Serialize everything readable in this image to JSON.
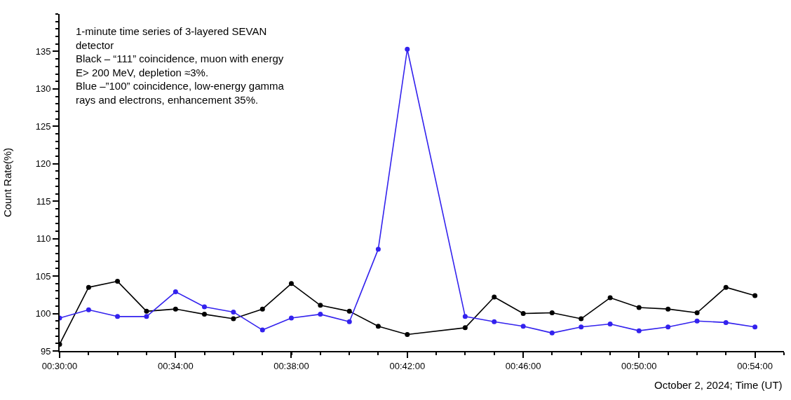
{
  "chart_data": {
    "type": "line",
    "x": [
      0.5,
      0.5167,
      0.5333,
      0.55,
      0.5667,
      0.5833,
      0.6,
      0.6167,
      0.6333,
      0.65,
      0.6667,
      0.6833,
      0.7,
      0.7333,
      0.75,
      0.7667,
      0.7833,
      0.8,
      0.8167,
      0.8333,
      0.85,
      0.8667,
      0.8833,
      0.9
    ],
    "series": [
      {
        "color": "#000000",
        "values": [
          95.9,
          103.5,
          104.3,
          100.3,
          100.6,
          99.9,
          99.3,
          100.6,
          104.0,
          101.1,
          100.3,
          98.3,
          97.2,
          98.1,
          102.2,
          100.0,
          100.1,
          99.3,
          102.1,
          100.8,
          100.6,
          100.1,
          103.5,
          102.4
        ]
      },
      {
        "color": "#3322ee",
        "values": [
          99.4,
          100.5,
          99.6,
          99.6,
          102.9,
          100.9,
          100.2,
          97.8,
          99.4,
          99.9,
          98.9,
          108.6,
          135.3,
          99.6,
          98.9,
          98.3,
          97.4,
          98.2,
          98.6,
          97.7,
          98.2,
          99.0,
          98.8,
          98.2
        ]
      }
    ],
    "xlabel": "October 2, 2024; Time (UT)",
    "ylabel": "Count Rate(%)",
    "xlim": [
      0.5,
      0.9167
    ],
    "xticks": [
      {
        "value": 0.5,
        "label": "00:30:00"
      },
      {
        "value": 0.5667,
        "label": "00:34:00"
      },
      {
        "value": 0.6333,
        "label": "00:38:00"
      },
      {
        "value": 0.7,
        "label": "00:42:00"
      },
      {
        "value": 0.7667,
        "label": "00:46:00"
      },
      {
        "value": 0.8333,
        "label": "00:50:00"
      },
      {
        "value": 0.9,
        "label": "00:54:00"
      }
    ],
    "ylim": [
      95,
      140
    ],
    "yticks": [
      95,
      100,
      105,
      110,
      115,
      120,
      125,
      130,
      135
    ],
    "annotations": [
      "1-minute time series of 3-layered SEVAN\ndetector\nBlack – “111” coincidence, muon with energy\nE> 200 MeV, depletion ≈3%.\nBlue –”100” coincidence, low-energy gamma\nrays and electrons, enhancement 35%."
    ],
    "marker": "circle",
    "line_style": "solid"
  }
}
